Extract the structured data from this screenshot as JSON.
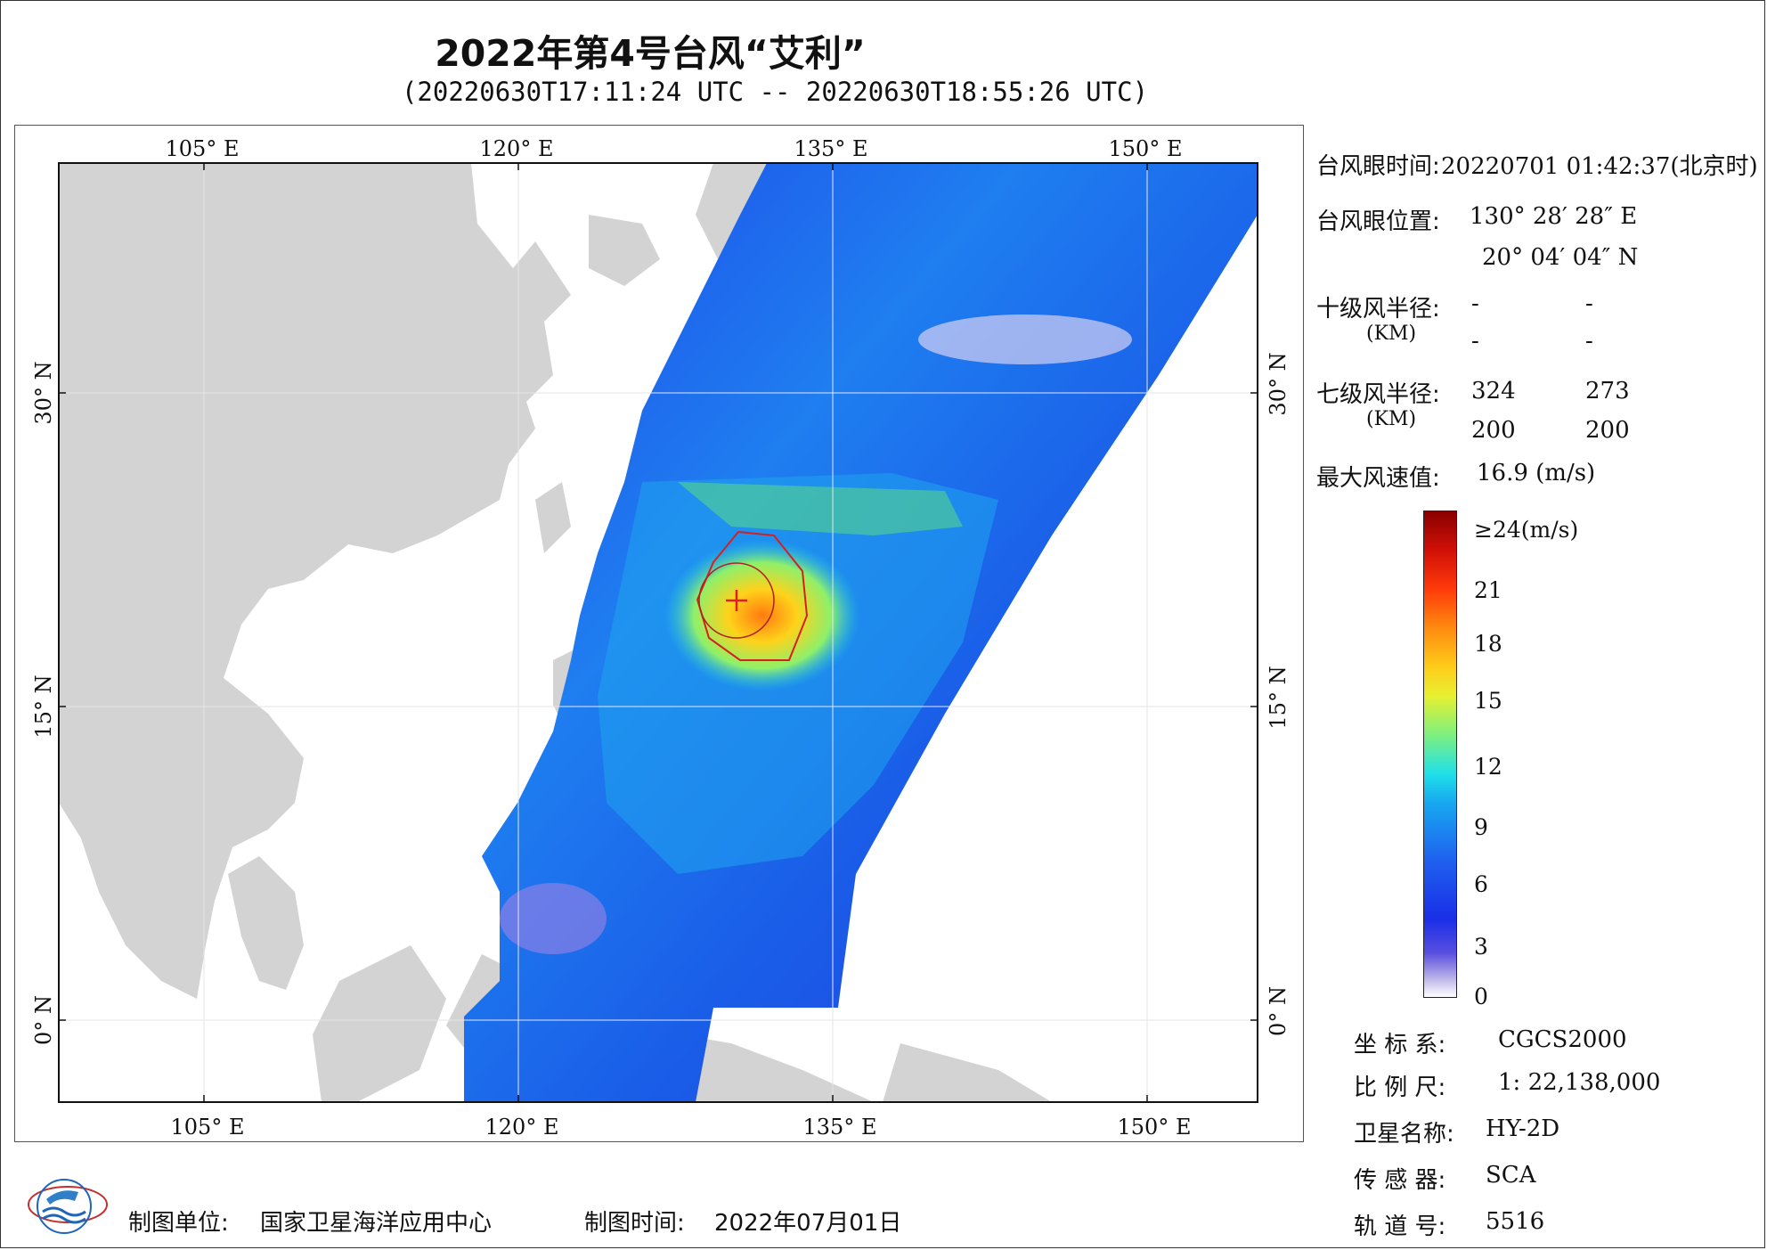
{
  "header": {
    "title": "2022年第4号台风“艾利”",
    "subtitle": "(20220630T17:11:24 UTC -- 20220630T18:55:26 UTC)"
  },
  "map": {
    "lon_ticks": [
      "105° E",
      "120° E",
      "135° E",
      "150° E"
    ],
    "lat_ticks": [
      "30° N",
      "15° N",
      "0° N"
    ],
    "lon_range_deg": [
      98,
      155
    ],
    "lat_range_deg": [
      -4,
      41
    ],
    "typhoon_center_lon": 130.47,
    "typhoon_center_lat": 20.07
  },
  "info": {
    "eye_time_label": "台风眼时间:",
    "eye_time_value": "20220701 01:42:37(北京时)",
    "eye_pos_label": "台风眼位置:",
    "eye_lon": "130° 28′ 28″ E",
    "eye_lat": "20° 04′ 04″ N",
    "r10_label": "十级风半径:",
    "r10_unit": "(KM)",
    "r10_values": [
      "-",
      "-",
      "-",
      "-"
    ],
    "r7_label": "七级风半径:",
    "r7_unit": "(KM)",
    "r7_values": [
      "324",
      "273",
      "200",
      "200"
    ],
    "max_wind_label": "最大风速值:",
    "max_wind_value": "16.9  (m/s)"
  },
  "colorbar": {
    "labels": [
      "≥24(m/s)",
      "21",
      "18",
      "15",
      "12",
      "9",
      "6",
      "3",
      "0"
    ],
    "max": 24,
    "min": 0
  },
  "meta_panel": {
    "crs_label": "坐 标 系:",
    "crs_value": "CGCS2000",
    "scale_label": "比 例 尺:",
    "scale_value": "1: 22,138,000",
    "satellite_label": "卫星名称:",
    "satellite_value": "HY-2D",
    "sensor_label": "传 感 器:",
    "sensor_value": "SCA",
    "orbit_label": "轨 道 号:",
    "orbit_value": "5516"
  },
  "footer": {
    "maker_label": "制图单位:",
    "maker_value": "国家卫星海洋应用中心",
    "date_label": "制图时间:",
    "date_value": "2022年07月01日"
  },
  "colors": {
    "land": "#d3d3d3",
    "sea": "#ffffff",
    "radius_outline": "#d42020",
    "center_mark": "#e02020"
  }
}
